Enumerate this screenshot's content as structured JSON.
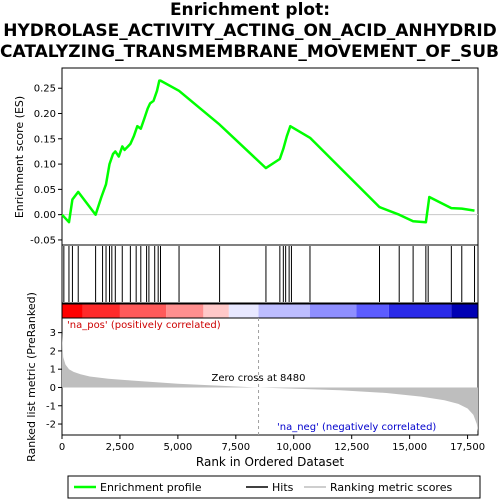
{
  "chart_data": {
    "type": "line",
    "title_lines": [
      "Enrichment plot:",
      "HYDROLASE_ACTIVITY_ACTING_ON_ACID_ANHYDRID",
      "CATALYZING_TRANSMEMBRANE_MOVEMENT_OF_SUBSTAN"
    ],
    "es_panel": {
      "ylabel": "Enrichment score (ES)",
      "ylim": [
        -0.06,
        0.29
      ],
      "yticks": [
        "-0.05",
        "0.00",
        "0.05",
        "0.10",
        "0.15",
        "0.20",
        "0.25"
      ],
      "ytick_values": [
        -0.05,
        0,
        0.05,
        0.1,
        0.15,
        0.2,
        0.25
      ],
      "series": [
        {
          "name": "Enrichment profile",
          "color": "#00ff00",
          "x": [
            0,
            300,
            450,
            700,
            1450,
            1700,
            1900,
            2050,
            2200,
            2300,
            2450,
            2600,
            2700,
            2950,
            3100,
            3250,
            3400,
            3550,
            3700,
            3800,
            3950,
            4100,
            4200,
            4250,
            5050,
            6800,
            8800,
            9400,
            9550,
            9700,
            9850,
            10700,
            13700,
            14550,
            15150,
            15700,
            15850,
            16800,
            17250,
            17800
          ],
          "y": [
            0.0,
            -0.015,
            0.03,
            0.045,
            0.0,
            0.035,
            0.06,
            0.1,
            0.12,
            0.125,
            0.115,
            0.135,
            0.128,
            0.14,
            0.155,
            0.175,
            0.17,
            0.19,
            0.21,
            0.22,
            0.225,
            0.245,
            0.265,
            0.265,
            0.245,
            0.178,
            0.092,
            0.11,
            0.13,
            0.155,
            0.175,
            0.152,
            0.015,
            0.0,
            -0.013,
            -0.015,
            0.035,
            0.013,
            0.012,
            0.008
          ]
        }
      ]
    },
    "hits_panel": {
      "hit_positions": [
        80,
        300,
        450,
        700,
        1450,
        1750,
        1900,
        2050,
        2150,
        2300,
        2600,
        2950,
        3200,
        3400,
        3650,
        3750,
        4000,
        4150,
        4250,
        5050,
        6800,
        8800,
        9400,
        9550,
        9650,
        9800,
        9900,
        10700,
        13700,
        14550,
        15150,
        15700,
        15800,
        16800,
        17250,
        17800
      ]
    },
    "rank_panel": {
      "ylabel": "Ranked list metric (PreRanked)",
      "ylim": [
        -2.6,
        3.8
      ],
      "yticks": [
        "-2",
        "-1",
        "0",
        "1",
        "2",
        "3"
      ],
      "ytick_values": [
        -2,
        -1,
        0,
        1,
        2,
        3
      ],
      "zero_cross_label": "Zero cross at 8480",
      "zero_cross": 8480,
      "pos_label": "'na_pos' (positively correlated)",
      "neg_label": "'na_neg' (negatively correlated)",
      "curve_x": [
        0,
        50,
        150,
        300,
        500,
        800,
        1200,
        2000,
        3000,
        5000,
        8480,
        12000,
        14000,
        15500,
        16500,
        17100,
        17500,
        17750,
        17900,
        17950
      ],
      "curve_y": [
        3.0,
        1.65,
        1.25,
        1.0,
        0.85,
        0.72,
        0.6,
        0.48,
        0.38,
        0.2,
        0.0,
        -0.15,
        -0.3,
        -0.5,
        -0.7,
        -0.9,
        -1.15,
        -1.5,
        -2.0,
        -2.4
      ],
      "fill_color": "#bebebe"
    },
    "heatmap_colors": [
      "#ff0000",
      "#ff2a2a",
      "#ff5a5a",
      "#ff8f8f",
      "#ffc8c8",
      "#e8e8ff",
      "#bdbdff",
      "#8f8fff",
      "#5c5cff",
      "#2a2ae8",
      "#0000b4"
    ],
    "xaxis": {
      "xlabel": "Rank in Ordered Dataset",
      "xlim": [
        0,
        17950
      ],
      "xticks": [
        "0",
        "2,500",
        "5,000",
        "7,500",
        "10,000",
        "12,500",
        "15,000",
        "17,500"
      ],
      "xtick_values": [
        0,
        2500,
        5000,
        7500,
        10000,
        12500,
        15000,
        17500
      ]
    },
    "legend": [
      "Enrichment profile",
      "Hits",
      "Ranking metric scores"
    ],
    "legend_colors": [
      "#00ff00",
      "#000000",
      "#bebebe"
    ]
  }
}
